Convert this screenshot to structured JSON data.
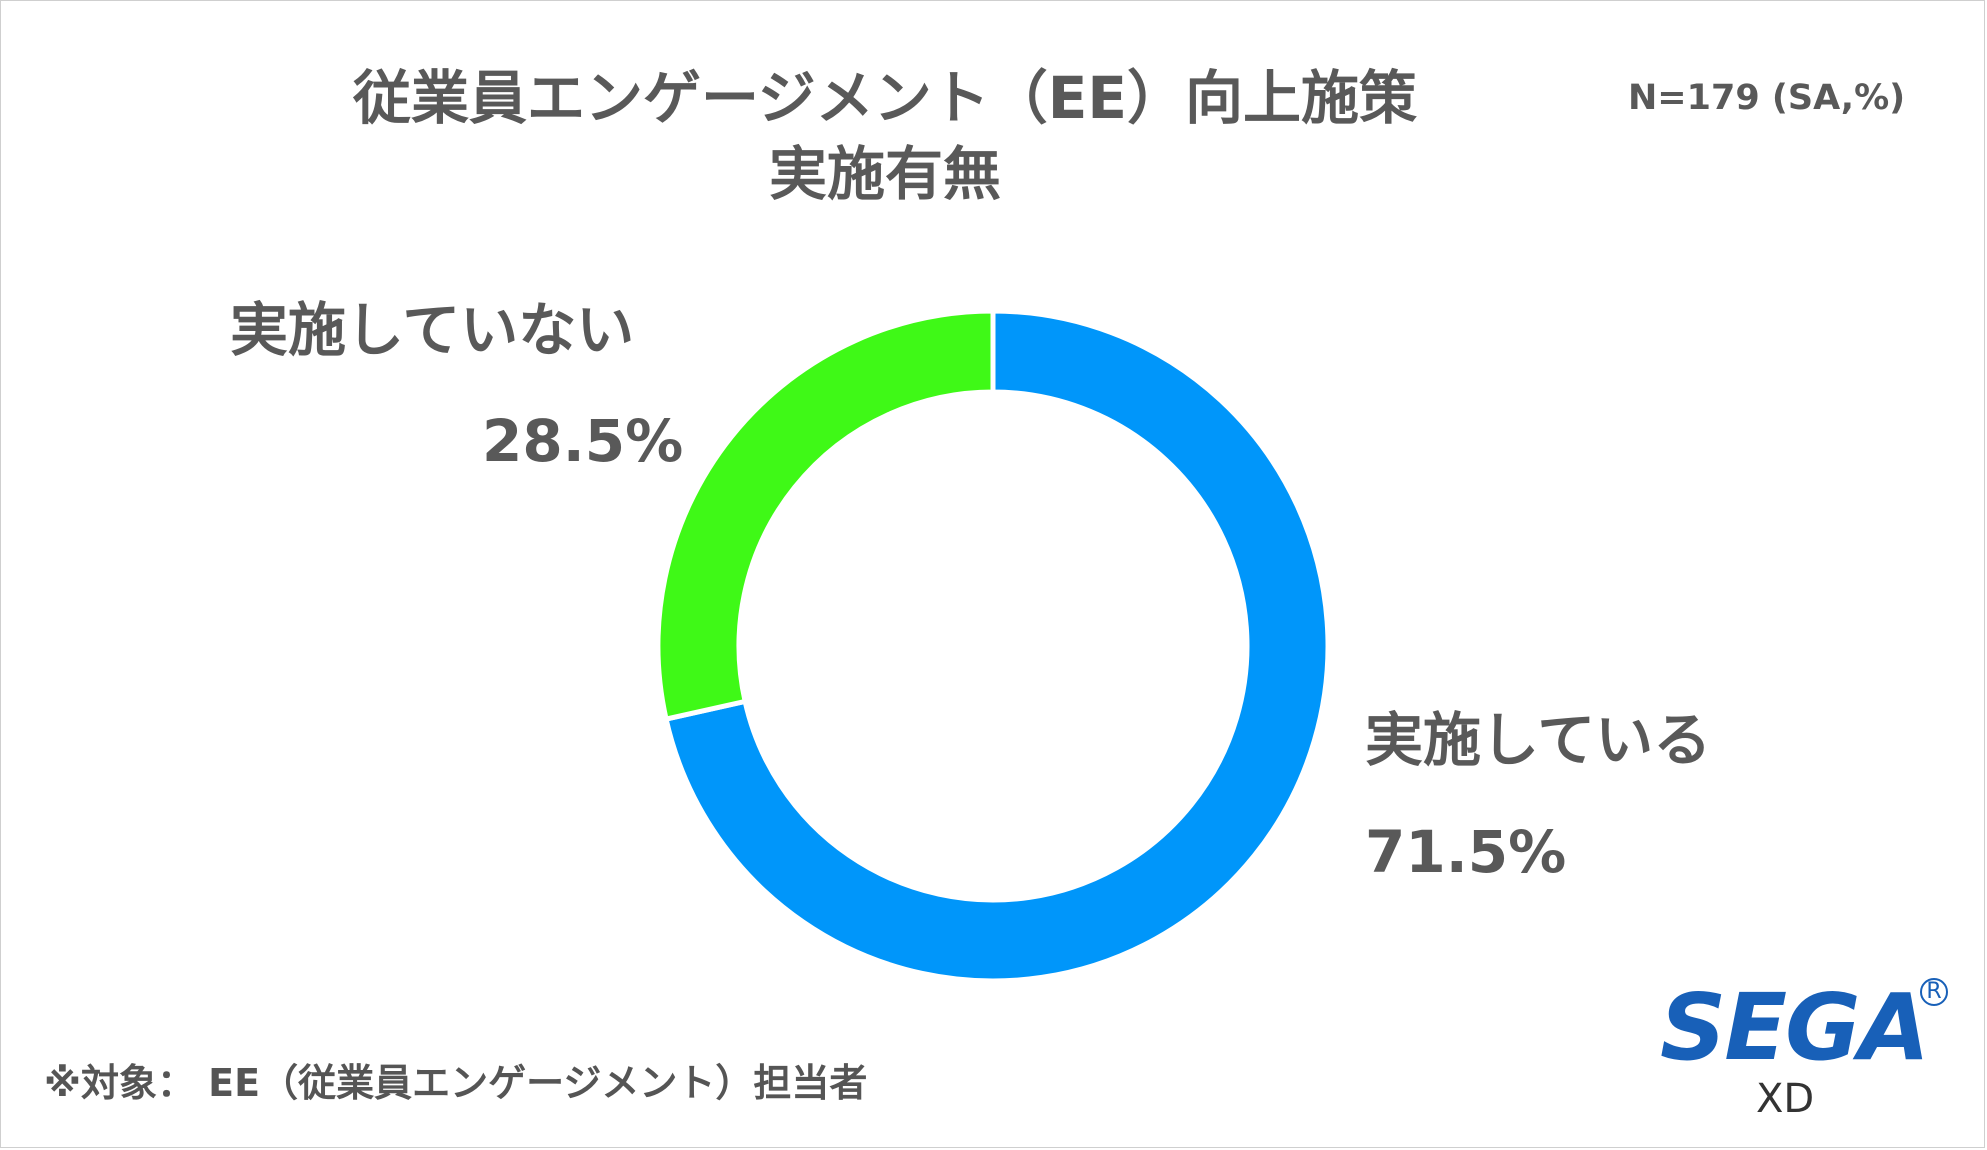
{
  "title": {
    "line1": "従業員エンゲージメント（EE）向上施策",
    "line2": "実施有無"
  },
  "sample_note": "N=179 (SA,%)",
  "chart_data": {
    "type": "pie",
    "donut": true,
    "title": "従業員エンゲージメント（EE）向上施策 実施有無",
    "slices": [
      {
        "label": "実施している",
        "value": 71.5,
        "value_label": "71.5%",
        "color": "#0096fa"
      },
      {
        "label": "実施していない",
        "value": 28.5,
        "value_label": "28.5%",
        "color": "#3ff917"
      }
    ],
    "start": "top",
    "direction": "clockwise"
  },
  "footnote": "※対象： EE（従業員エンゲージメント）担当者",
  "logo": {
    "brand": "SEGA",
    "registered": "R",
    "sub": "XD",
    "color": "#1860b8"
  }
}
